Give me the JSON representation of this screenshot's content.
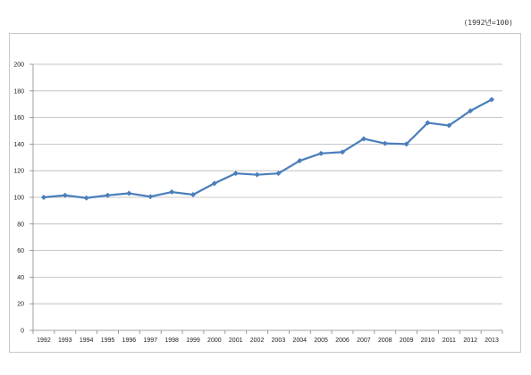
{
  "note": "(1992년=100)",
  "chart_data": {
    "type": "line",
    "categories": [
      "1992",
      "1993",
      "1994",
      "1995",
      "1996",
      "1997",
      "1998",
      "1999",
      "2000",
      "2001",
      "2002",
      "2003",
      "2004",
      "2005",
      "2006",
      "2007",
      "2008",
      "2009",
      "2010",
      "2011",
      "2012",
      "2013"
    ],
    "series": [
      {
        "values": [
          100,
          101.5,
          99.5,
          101.5,
          103,
          100.5,
          104,
          102,
          110.5,
          118,
          117,
          118,
          127.5,
          133,
          134,
          144,
          140.5,
          140,
          156,
          154,
          165,
          173.5
        ]
      }
    ],
    "ylim": [
      0,
      200
    ],
    "yticks": [
      0,
      20,
      40,
      60,
      80,
      100,
      120,
      140,
      160,
      180,
      200
    ],
    "grid": true,
    "line_color": "#4a7ebb",
    "grid_color": "#b7b7b7"
  }
}
